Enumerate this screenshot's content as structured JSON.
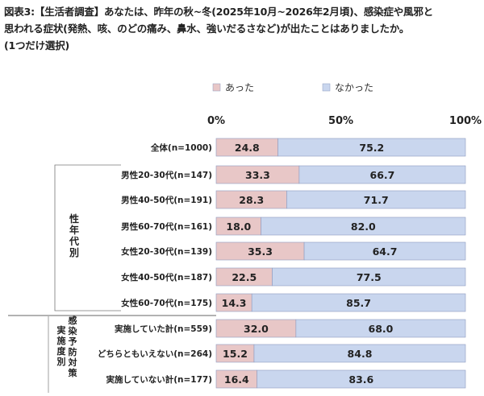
{
  "title_lines": [
    "図表3:【生活者調査】あなたは、昨年の秋~冬(2025年10月~2026年2月頃)、感染症や風邪と",
    "思われる症状(発熱、咳、のどの痛み、鼻水、強いだるさなど)が出たことはありましたか。",
    "(1つだけ選択)"
  ],
  "group_labels": {
    "gender_age": "性年代別",
    "prevention": "感染予防対策実施度別"
  },
  "chart_data": {
    "type": "bar",
    "orientation": "horizontal",
    "stacked": true,
    "percent_stacked": true,
    "categories": [
      "全体(n=1000)",
      "男性20-30代(n=147)",
      "男性40-50代(n=191)",
      "男性60-70代(n=161)",
      "女性20-30代(n=139)",
      "女性40-50代(n=187)",
      "女性60-70代(n=175)",
      "実施していた計(n=559)",
      "どちらともいえない(n=264)",
      "実施していない計(n=177)"
    ],
    "series": [
      {
        "name": "あった",
        "values": [
          24.8,
          33.3,
          28.3,
          18.0,
          35.3,
          22.5,
          14.3,
          32.0,
          15.2,
          16.4
        ],
        "color": "#e8c7c7"
      },
      {
        "name": "なかった",
        "values": [
          75.2,
          66.7,
          71.7,
          82.0,
          64.7,
          77.5,
          85.7,
          68.0,
          84.8,
          83.6
        ],
        "color": "#c9d6ee"
      }
    ],
    "tick_labels": [
      "0%",
      "50%",
      "100%"
    ],
    "xlim": [
      0,
      100
    ],
    "legend_position": "top",
    "grid": false,
    "border_color": "#8e9bc0"
  }
}
